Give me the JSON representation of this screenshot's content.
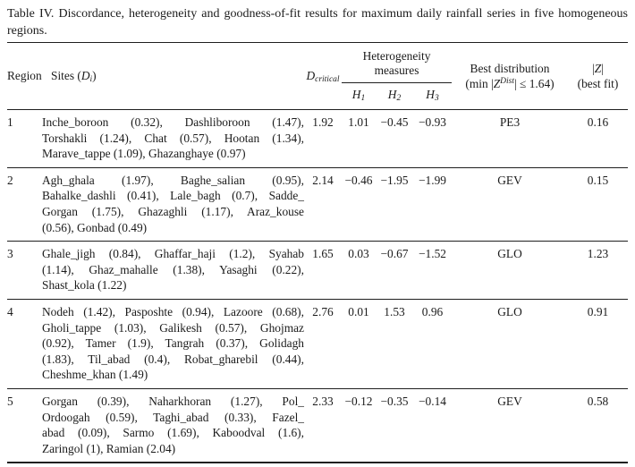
{
  "caption": "Table IV. Discordance, heterogeneity and goodness-of-fit results for maximum daily rainfall series in five homogeneous regions.",
  "colors": {
    "text": "#1b1b1b",
    "rule": "#1f1f1f",
    "background": "#ffffff"
  },
  "header": {
    "region": "Region",
    "sites": {
      "pre": "Sites (",
      "symbol": "D",
      "sub": "i",
      "post": ")"
    },
    "dcritical": {
      "symbol": "D",
      "sub": "critical"
    },
    "heterogeneity": {
      "line1": "Heterogeneity",
      "line2": "measures"
    },
    "h1": {
      "symbol": "H",
      "sub": "1"
    },
    "h2": {
      "symbol": "H",
      "sub": "2"
    },
    "h3": {
      "symbol": "H",
      "sub": "3"
    },
    "best_distribution": {
      "line1": "Best distribution",
      "line2_pre": "(min |",
      "line2_z": "Z",
      "line2_sup": "Dist",
      "line2_post": "| ≤ 1.64)"
    },
    "z_best_fit": {
      "line1_pre": "|",
      "line1_z": "Z",
      "line1_post": "|",
      "line2": "(best fit)"
    }
  },
  "rows": [
    {
      "region": "1",
      "sites_lines": [
        "Inche_boroon (0.32), Dashliboroon (1.47),",
        "Torshakli (1.24), Chat (0.57), Hootan (1.34),",
        "Marave_tappe (1.09), Ghazanghaye (0.97)"
      ],
      "d_critical": "1.92",
      "h1": "1.01",
      "h2": "−0.45",
      "h3": "−0.93",
      "best_distribution": "PE3",
      "z_best_fit": "0.16"
    },
    {
      "region": "2",
      "sites_lines": [
        "Agh_ghala (1.97), Baghe_salian (0.95),",
        "Bahalke_dashli (0.41), Lale_bagh (0.7), Sadde_",
        "Gorgan (1.75), Ghazaghli (1.17), Araz_kouse",
        "(0.56), Gonbad (0.49)"
      ],
      "d_critical": "2.14",
      "h1": "−0.46",
      "h2": "−1.95",
      "h3": "−1.99",
      "best_distribution": "GEV",
      "z_best_fit": "0.15"
    },
    {
      "region": "3",
      "sites_lines": [
        "Ghale_jigh (0.84), Ghaffar_haji (1.2), Syahab",
        "(1.14), Ghaz_mahalle (1.38), Yasaghi (0.22),",
        "Shast_kola (1.22)"
      ],
      "d_critical": "1.65",
      "h1": "0.03",
      "h2": "−0.67",
      "h3": "−1.52",
      "best_distribution": "GLO",
      "z_best_fit": "1.23"
    },
    {
      "region": "4",
      "sites_lines": [
        "Nodeh (1.42), Pasposhte (0.94), Lazoore (0.68),",
        "Gholi_tappe (1.03), Galikesh (0.57), Ghojmaz",
        "(0.92), Tamer (1.9), Tangrah (0.37), Golidagh",
        "(1.83), Til_abad (0.4), Robat_gharebil (0.44),",
        "Cheshme_khan (1.49)"
      ],
      "d_critical": "2.76",
      "h1": "0.01",
      "h2": "1.53",
      "h3": "0.96",
      "best_distribution": "GLO",
      "z_best_fit": "0.91"
    },
    {
      "region": "5",
      "sites_lines": [
        "Gorgan (0.39), Naharkhoran (1.27), Pol_",
        "Ordoogah (0.59), Taghi_abad (0.33), Fazel_",
        "abad (0.09), Sarmo (1.69), Kaboodval (1.6),",
        "Zaringol (1), Ramian (2.04)"
      ],
      "d_critical": "2.33",
      "h1": "−0.12",
      "h2": "−0.35",
      "h3": "−0.14",
      "best_distribution": "GEV",
      "z_best_fit": "0.58"
    }
  ]
}
